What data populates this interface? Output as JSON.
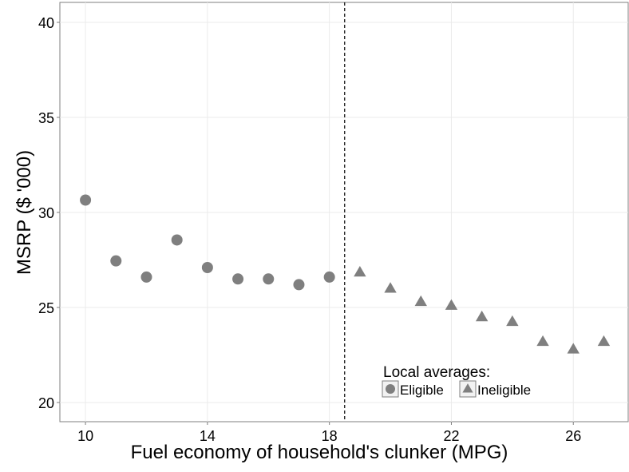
{
  "chart_data": {
    "type": "scatter",
    "xlabel": "Fuel economy of household's clunker (MPG)",
    "ylabel": "MSRP ($ '000)",
    "legend_title": "Local averages:",
    "series": [
      {
        "name": "Eligible",
        "marker": "circle",
        "color": "#7f7f7f",
        "x": [
          10,
          11,
          12,
          13,
          14,
          15,
          16,
          17,
          18
        ],
        "values": [
          30.65,
          27.45,
          26.6,
          28.55,
          27.1,
          26.5,
          26.5,
          26.2,
          26.6
        ]
      },
      {
        "name": "Ineligible",
        "marker": "triangle",
        "color": "#7f7f7f",
        "x": [
          19,
          20,
          21,
          22,
          23,
          24,
          25,
          26,
          27
        ],
        "values": [
          26.85,
          26.0,
          25.3,
          25.1,
          24.5,
          24.25,
          23.2,
          22.8,
          23.2
        ]
      }
    ],
    "vline": 18.5,
    "xlim": [
      9.16,
      27.8
    ],
    "xticks": [
      10,
      14,
      18,
      22,
      26
    ],
    "ylim": [
      18.99,
      41.05
    ],
    "yticks": [
      20,
      25,
      30,
      35,
      40
    ],
    "grid": true
  }
}
